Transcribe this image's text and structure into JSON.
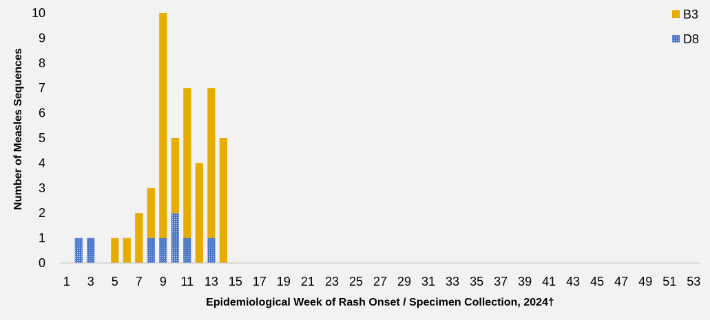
{
  "chart_data": {
    "type": "bar",
    "stacked": true,
    "title": "",
    "xlabel": "Epidemiological Week of Rash Onset / Specimen Collection, 2024†",
    "ylabel": "Number of Measles Sequences",
    "ylim": [
      0,
      10
    ],
    "yticks": [
      "0",
      "1",
      "2",
      "3",
      "4",
      "5",
      "6",
      "7",
      "8",
      "9",
      "10"
    ],
    "x": [
      1,
      2,
      3,
      4,
      5,
      6,
      7,
      8,
      9,
      10,
      11,
      12,
      13,
      14,
      15,
      16,
      17,
      18,
      19,
      20,
      21,
      22,
      23,
      24,
      25,
      26,
      27,
      28,
      29,
      30,
      31,
      32,
      33,
      34,
      35,
      36,
      37,
      38,
      39,
      40,
      41,
      42,
      43,
      44,
      45,
      46,
      47,
      48,
      49,
      50,
      51,
      52,
      53
    ],
    "xtick_labels": [
      "1",
      "3",
      "5",
      "7",
      "9",
      "11",
      "13",
      "15",
      "17",
      "19",
      "21",
      "23",
      "25",
      "27",
      "29",
      "31",
      "33",
      "35",
      "37",
      "39",
      "41",
      "43",
      "45",
      "47",
      "49",
      "51",
      "53"
    ],
    "series": [
      {
        "name": "D8",
        "color": "#4472c4",
        "pattern": "dotted",
        "values": [
          0,
          1,
          1,
          0,
          0,
          0,
          0,
          1,
          1,
          2,
          1,
          0,
          1,
          0,
          0,
          0,
          0,
          0,
          0,
          0,
          0,
          0,
          0,
          0,
          0,
          0,
          0,
          0,
          0,
          0,
          0,
          0,
          0,
          0,
          0,
          0,
          0,
          0,
          0,
          0,
          0,
          0,
          0,
          0,
          0,
          0,
          0,
          0,
          0,
          0,
          0,
          0,
          0
        ]
      },
      {
        "name": "B3",
        "color": "#e6ac00",
        "pattern": "solid",
        "values": [
          0,
          0,
          0,
          0,
          1,
          1,
          2,
          2,
          9,
          3,
          6,
          4,
          6,
          5,
          0,
          0,
          0,
          0,
          0,
          0,
          0,
          0,
          0,
          0,
          0,
          0,
          0,
          0,
          0,
          0,
          0,
          0,
          0,
          0,
          0,
          0,
          0,
          0,
          0,
          0,
          0,
          0,
          0,
          0,
          0,
          0,
          0,
          0,
          0,
          0,
          0,
          0,
          0
        ]
      }
    ],
    "legend": {
      "position": "top-right",
      "order": [
        "B3",
        "D8"
      ]
    },
    "grid": false
  }
}
